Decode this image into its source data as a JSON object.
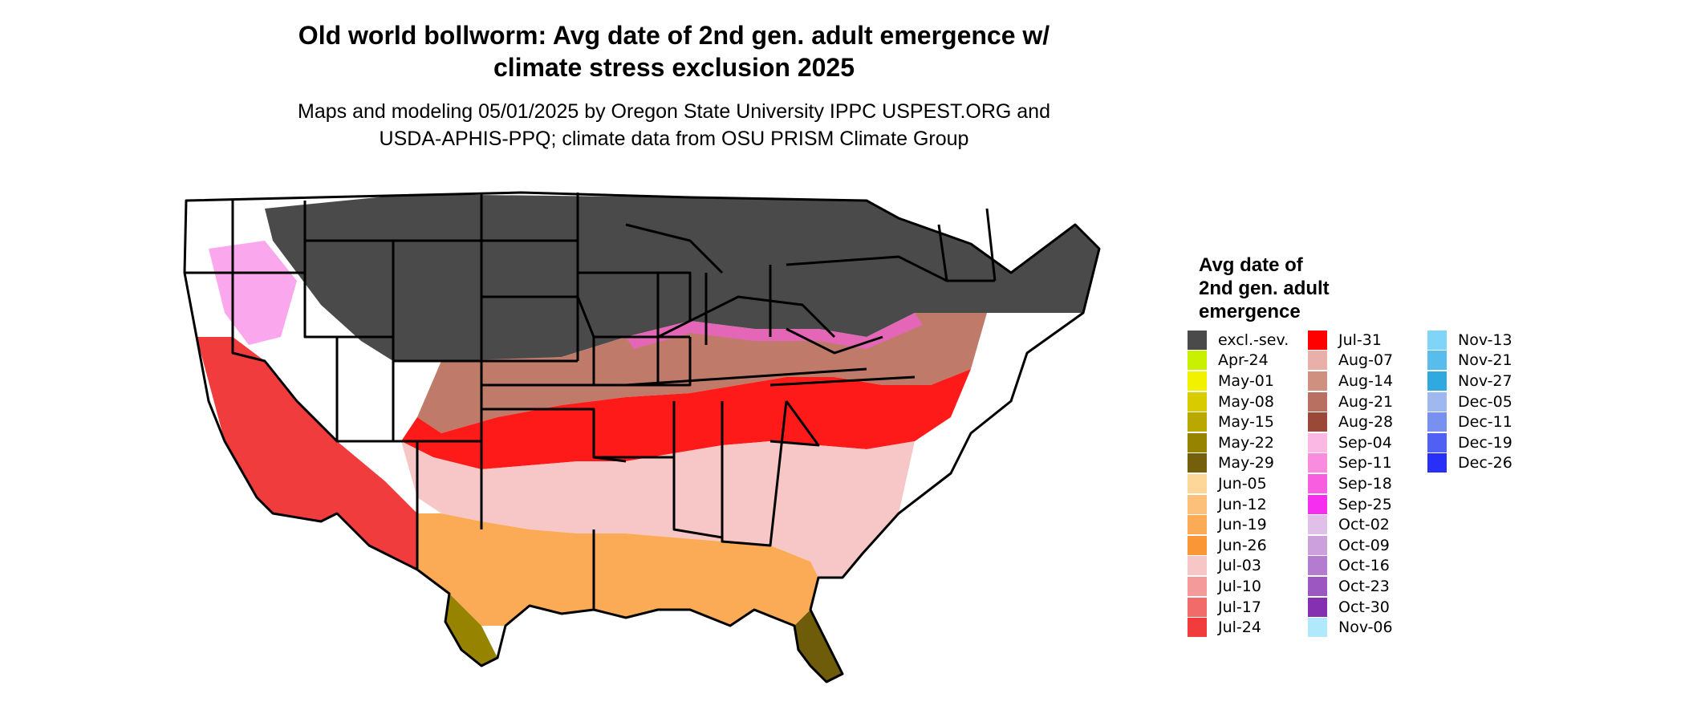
{
  "title": {
    "line1": "Old world bollworm: Avg date of 2nd gen. adult emergence w/",
    "line2": "climate stress exclusion 2025"
  },
  "subtitle": {
    "line1": "Maps and modeling 05/01/2025 by Oregon State University IPPC USPEST.ORG and",
    "line2": "USDA-APHIS-PPQ; climate data from OSU PRISM Climate Group"
  },
  "legend": {
    "title_lines": [
      "Avg date of",
      "2nd gen. adult",
      "emergence"
    ],
    "columns": [
      [
        {
          "label": "excl.-sev.",
          "color": "#4a4a4a"
        },
        {
          "label": "Apr-24",
          "color": "#c8f000"
        },
        {
          "label": "May-01",
          "color": "#f2f200"
        },
        {
          "label": "May-08",
          "color": "#d8cc00"
        },
        {
          "label": "May-15",
          "color": "#b8a800"
        },
        {
          "label": "May-22",
          "color": "#968400"
        },
        {
          "label": "May-29",
          "color": "#74600a"
        },
        {
          "label": "Jun-05",
          "color": "#fdd79a"
        },
        {
          "label": "Jun-12",
          "color": "#fcc07a"
        },
        {
          "label": "Jun-19",
          "color": "#fbaa55"
        },
        {
          "label": "Jun-26",
          "color": "#fa9636"
        },
        {
          "label": "Jul-03",
          "color": "#f7c6c6"
        },
        {
          "label": "Jul-10",
          "color": "#f59a9a"
        },
        {
          "label": "Jul-17",
          "color": "#f26b6b"
        },
        {
          "label": "Jul-24",
          "color": "#f03c3c"
        }
      ],
      [
        {
          "label": "Jul-31",
          "color": "#ff0000"
        },
        {
          "label": "Aug-07",
          "color": "#e8b0a8"
        },
        {
          "label": "Aug-14",
          "color": "#d09080"
        },
        {
          "label": "Aug-21",
          "color": "#b87060"
        },
        {
          "label": "Aug-28",
          "color": "#9a4838"
        },
        {
          "label": "Sep-04",
          "color": "#fcb8e4"
        },
        {
          "label": "Sep-11",
          "color": "#fa8ce0"
        },
        {
          "label": "Sep-18",
          "color": "#f85ee0"
        },
        {
          "label": "Sep-25",
          "color": "#f62ef0"
        },
        {
          "label": "Oct-02",
          "color": "#e0c0e8"
        },
        {
          "label": "Oct-09",
          "color": "#cca0dc"
        },
        {
          "label": "Oct-16",
          "color": "#b47cd0"
        },
        {
          "label": "Oct-23",
          "color": "#9c58c0"
        },
        {
          "label": "Oct-30",
          "color": "#8430b0"
        },
        {
          "label": "Nov-06",
          "color": "#b0e8fc"
        }
      ],
      [
        {
          "label": "Nov-13",
          "color": "#80d4f8"
        },
        {
          "label": "Nov-21",
          "color": "#58bcec"
        },
        {
          "label": "Nov-27",
          "color": "#30a8e0"
        },
        {
          "label": "Dec-05",
          "color": "#a0b8f0"
        },
        {
          "label": "Dec-11",
          "color": "#7890f0"
        },
        {
          "label": "Dec-19",
          "color": "#5060f4"
        },
        {
          "label": "Dec-26",
          "color": "#2830f8"
        }
      ]
    ]
  },
  "map": {
    "border_color": "#000000",
    "no_data_color": "#ffffff"
  }
}
